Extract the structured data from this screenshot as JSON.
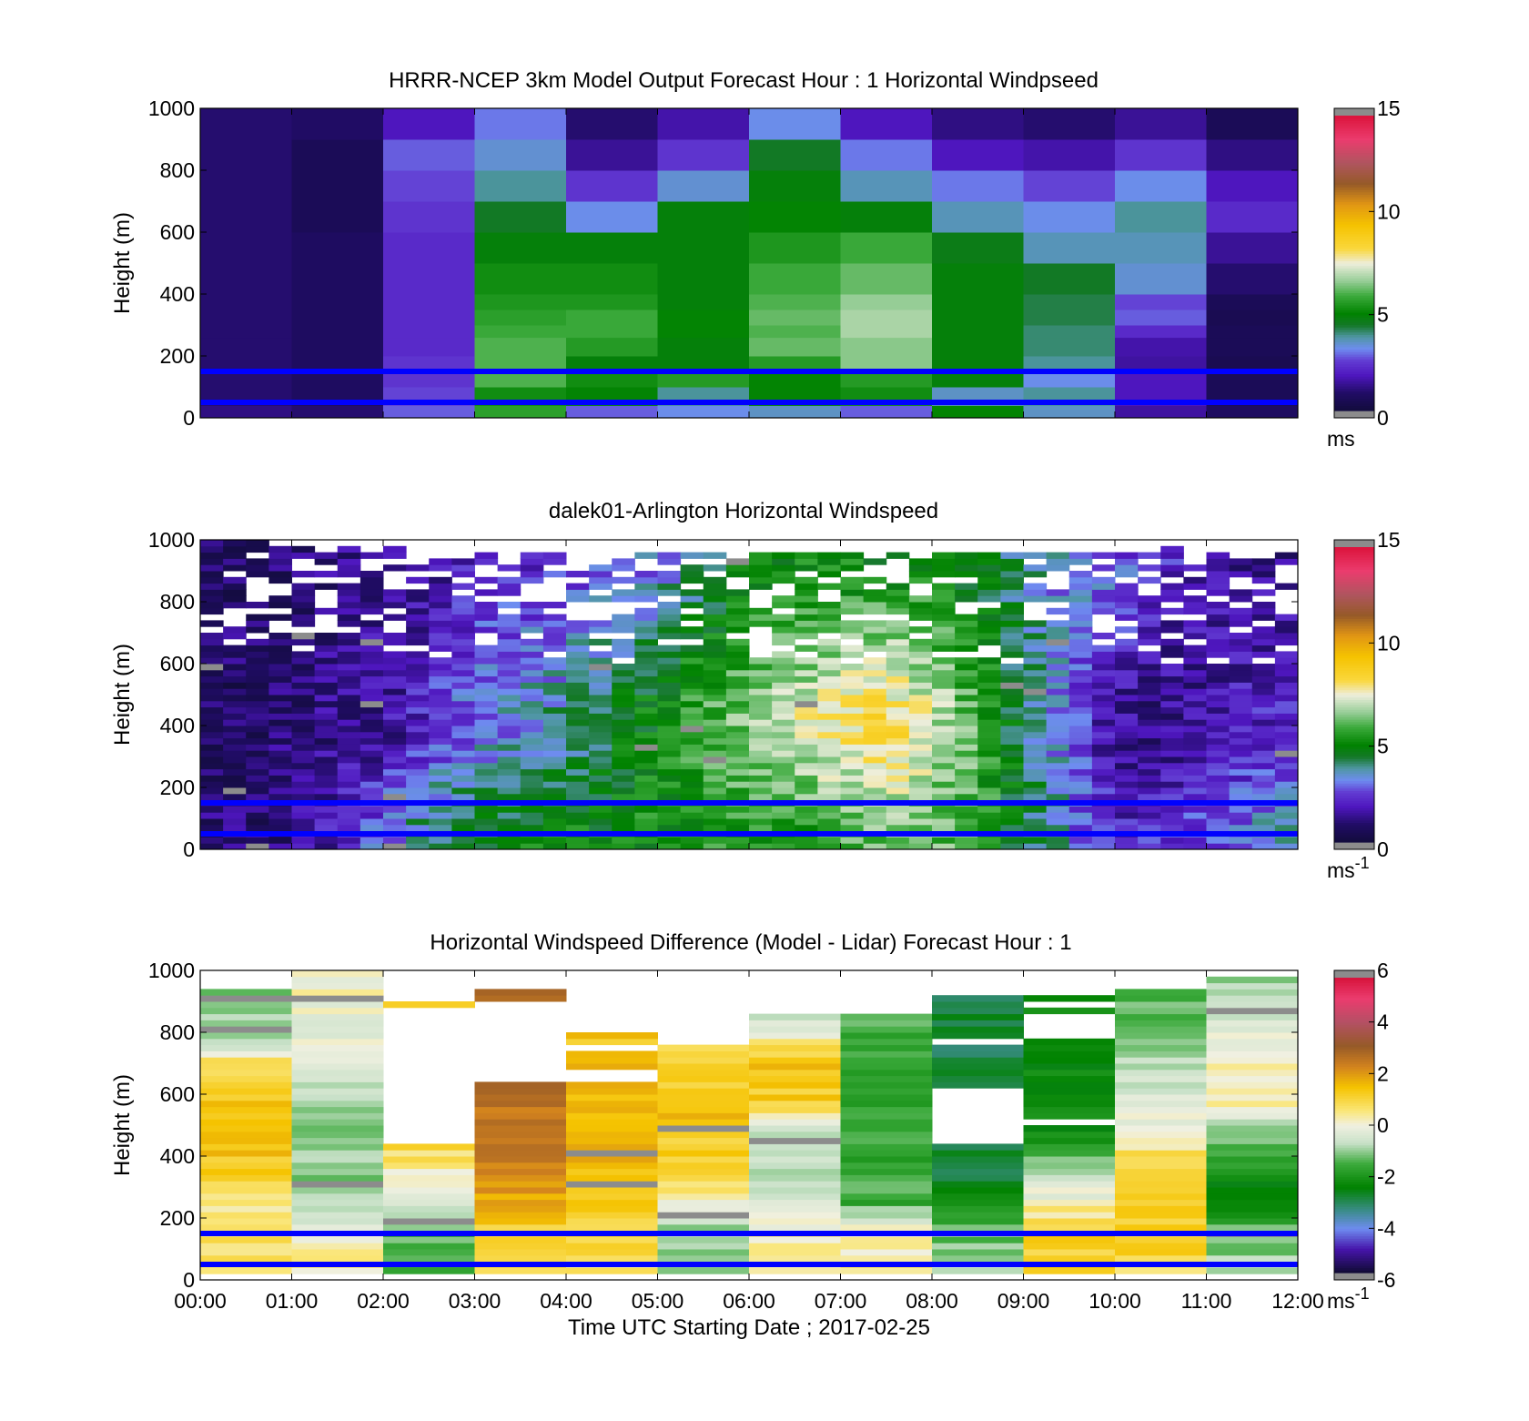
{
  "chart_data": [
    {
      "type": "heatmap",
      "title": "HRRR-NCEP 3km Model Output   Forecast Hour : 1 Horizontal Windpseed",
      "ylabel": "Height (m)",
      "ylim": [
        0,
        1000
      ],
      "yticks": [
        "0",
        "200",
        "400",
        "600",
        "800",
        "1000"
      ],
      "xlim_hours": [
        0,
        12
      ],
      "xticks": [
        "00:00",
        "01:00",
        "02:00",
        "03:00",
        "04:00",
        "05:00",
        "06:00",
        "07:00",
        "08:00",
        "09:00",
        "10:00",
        "11:00",
        "12:00"
      ],
      "show_xtick_labels": false,
      "colorbar": {
        "min": 0,
        "max": 15,
        "ticks": [
          "0",
          "5",
          "10",
          "15"
        ],
        "unit": "ms",
        "unit_sup": "",
        "palette": "wind"
      },
      "reference_heights_m": [
        150,
        50
      ],
      "reference_line_color": "#0000ff",
      "grid": false,
      "x_hours": [
        0,
        1,
        2,
        3,
        4,
        5,
        6,
        7,
        8,
        9,
        10,
        11
      ],
      "height_bins_m": [
        0,
        40,
        100,
        150,
        200,
        260,
        300,
        350,
        400,
        500,
        600,
        700,
        800,
        900,
        1000
      ],
      "values_ms": [
        [
          1.2,
          1.0,
          2.8,
          5.6,
          2.8,
          3.2,
          3.5,
          2.8,
          5.0,
          3.5,
          1.5,
          0.8
        ],
        [
          1.0,
          0.8,
          2.6,
          5.2,
          5.0,
          3.8,
          5.0,
          5.2,
          3.5,
          3.8,
          1.8,
          0.6
        ],
        [
          1.0,
          0.8,
          2.4,
          6.0,
          5.2,
          5.5,
          5.0,
          5.5,
          4.8,
          3.2,
          1.8,
          0.6
        ],
        [
          1.0,
          0.8,
          2.4,
          6.0,
          4.8,
          4.8,
          5.5,
          6.5,
          4.8,
          3.8,
          1.5,
          0.5
        ],
        [
          1.0,
          0.8,
          2.2,
          6.0,
          5.5,
          4.8,
          6.2,
          6.5,
          4.8,
          4.0,
          1.6,
          0.6
        ],
        [
          1.0,
          0.8,
          2.2,
          5.8,
          5.8,
          5.0,
          6.0,
          6.8,
          4.8,
          4.0,
          2.2,
          0.6
        ],
        [
          1.0,
          0.8,
          2.2,
          5.6,
          5.8,
          5.0,
          6.2,
          6.8,
          4.8,
          4.2,
          2.8,
          0.5
        ],
        [
          1.0,
          0.8,
          2.2,
          5.4,
          5.4,
          4.8,
          6.0,
          6.6,
          4.8,
          4.2,
          2.6,
          0.6
        ],
        [
          1.0,
          0.8,
          2.2,
          5.2,
          5.2,
          4.8,
          5.8,
          6.2,
          4.8,
          4.4,
          3.4,
          1.0
        ],
        [
          1.0,
          0.8,
          2.2,
          4.8,
          4.8,
          4.8,
          5.4,
          5.8,
          4.6,
          3.6,
          3.6,
          1.4
        ],
        [
          1.0,
          0.6,
          2.4,
          4.4,
          3.2,
          4.8,
          5.0,
          4.8,
          3.6,
          3.2,
          3.8,
          2.2
        ],
        [
          1.0,
          0.6,
          2.6,
          3.8,
          2.4,
          3.4,
          4.8,
          3.6,
          3.0,
          2.6,
          3.2,
          1.8
        ],
        [
          1.0,
          0.6,
          2.8,
          3.4,
          1.4,
          2.4,
          4.4,
          3.0,
          1.8,
          1.6,
          2.4,
          1.2
        ],
        [
          1.0,
          0.9,
          1.8,
          3.0,
          1.0,
          1.6,
          3.2,
          1.8,
          1.2,
          1.0,
          1.4,
          0.6
        ]
      ]
    },
    {
      "type": "heatmap",
      "title": "dalek01-Arlington  Horizontal Windspeed",
      "ylabel": "Height (m)",
      "ylim": [
        0,
        1000
      ],
      "yticks": [
        "0",
        "200",
        "400",
        "600",
        "800",
        "1000"
      ],
      "xlim_hours": [
        0,
        12
      ],
      "xticks": [
        "00:00",
        "01:00",
        "02:00",
        "03:00",
        "04:00",
        "05:00",
        "06:00",
        "07:00",
        "08:00",
        "09:00",
        "10:00",
        "11:00",
        "12:00"
      ],
      "show_xtick_labels": false,
      "colorbar": {
        "min": 0,
        "max": 15,
        "ticks": [
          "0",
          "5",
          "10",
          "15"
        ],
        "unit": "ms",
        "unit_sup": "-1",
        "palette": "wind"
      },
      "reference_heights_m": [
        150,
        50
      ],
      "reference_line_color": "#0000ff",
      "grid": false,
      "x_step_hours": 0.25,
      "x_count": 48,
      "height_step_m": 20,
      "height_count": 50,
      "profile_control_hours": [
        0,
        0.5,
        1,
        1.5,
        2,
        2.5,
        3,
        3.5,
        4,
        4.5,
        5,
        5.5,
        6,
        6.5,
        7,
        7.5,
        8,
        8.5,
        9,
        9.5,
        10,
        10.5,
        11,
        11.5,
        12
      ],
      "profile_low_ms": [
        1.0,
        1.0,
        1.2,
        2.0,
        3.0,
        4.2,
        4.6,
        4.8,
        5.0,
        5.0,
        5.2,
        5.4,
        5.4,
        5.6,
        5.8,
        6.2,
        6.2,
        5.8,
        4.5,
        3.2,
        2.0,
        2.2,
        2.6,
        3.2,
        3.4
      ],
      "profile_mid_ms": [
        0.8,
        0.8,
        1.0,
        1.3,
        1.5,
        2.2,
        3.0,
        3.4,
        3.8,
        4.5,
        5.0,
        5.8,
        6.4,
        7.2,
        7.8,
        8.4,
        7.2,
        5.8,
        4.2,
        2.8,
        1.5,
        1.2,
        1.6,
        2.0,
        2.0
      ],
      "profile_high_ms": [
        1.0,
        0.9,
        1.0,
        1.2,
        1.4,
        1.6,
        2.0,
        2.2,
        2.4,
        2.8,
        3.2,
        4.0,
        4.8,
        5.0,
        5.0,
        5.0,
        5.0,
        4.6,
        3.8,
        3.2,
        2.8,
        2.2,
        1.6,
        1.4,
        1.4
      ],
      "top_of_data_m_per_column": [
        1000,
        1000,
        990,
        990,
        1000,
        985,
        970,
        960,
        970,
        960,
        950,
        950,
        960,
        960,
        950,
        950,
        960,
        960,
        960,
        955,
        955,
        960,
        955,
        955,
        960,
        955,
        950,
        950,
        950,
        950,
        950,
        950,
        955,
        955,
        950,
        955,
        950,
        960,
        955,
        960,
        950,
        965,
        970,
        965,
        960,
        960,
        955,
        960
      ],
      "missing_fraction_above_600m": 0.32,
      "random_seed": 7
    },
    {
      "type": "heatmap",
      "title": "Horizontal Windspeed Difference (Model - Lidar) Forecast Hour : 1",
      "xlabel": "Time UTC  Starting Date ; 2017-02-25",
      "ylabel": "Height (m)",
      "ylim": [
        0,
        1000
      ],
      "yticks": [
        "0",
        "200",
        "400",
        "600",
        "800",
        "1000"
      ],
      "xlim_hours": [
        0,
        12
      ],
      "xticks": [
        "00:00",
        "01:00",
        "02:00",
        "03:00",
        "04:00",
        "05:00",
        "06:00",
        "07:00",
        "08:00",
        "09:00",
        "10:00",
        "11:00",
        "12:00"
      ],
      "show_xtick_labels": true,
      "colorbar": {
        "min": -6,
        "max": 6,
        "ticks": [
          "-6",
          "-4",
          "-2",
          "0",
          "2",
          "4",
          "6"
        ],
        "unit": "ms",
        "unit_sup": "-1",
        "palette": "diff"
      },
      "reference_heights_m": [
        150,
        50
      ],
      "reference_line_color": "#0000ff",
      "grid": false,
      "x_hours": [
        0,
        1,
        2,
        3,
        4,
        5,
        6,
        7,
        8,
        9,
        10,
        11
      ],
      "height_step_m": 20,
      "column_top_m": [
        940,
        1000,
        890,
        925,
        790,
        750,
        860,
        860,
        920,
        910,
        940,
        980
      ],
      "column_profiles": [
        {
          "h": [
            20,
            150,
            250,
            400,
            600,
            700,
            760,
            900,
            940
          ],
          "v": [
            0.8,
            0.8,
            0.5,
            1.5,
            1.5,
            1.0,
            -0.6,
            -1.2,
            -1.6
          ]
        },
        {
          "h": [
            20,
            150,
            200,
            300,
            500,
            700,
            1000
          ],
          "v": [
            0.3,
            0.2,
            -0.8,
            -1.0,
            -1.2,
            -0.4,
            0.2
          ]
        },
        {
          "h": [
            20,
            150,
            400,
            450
          ],
          "v": [
            -1.5,
            -1.5,
            0.8,
            0.9
          ]
        },
        {
          "h": [
            20,
            150,
            300,
            450,
            580
          ],
          "v": [
            1.0,
            1.2,
            2.0,
            2.6,
            2.7
          ]
        },
        {
          "h": [
            20,
            150,
            300,
            450,
            650
          ],
          "v": [
            0.8,
            1.0,
            1.6,
            1.8,
            1.5
          ]
        },
        {
          "h": [
            20,
            150,
            300,
            500,
            740
          ],
          "v": [
            -1.2,
            -1.0,
            0.6,
            1.6,
            1.2
          ]
        },
        {
          "h": [
            20,
            150,
            300,
            480,
            560,
            700,
            860
          ],
          "v": [
            0.2,
            0.2,
            -0.8,
            -0.8,
            1.2,
            1.5,
            -1.0
          ]
        },
        {
          "h": [
            20,
            150,
            250,
            500,
            860
          ],
          "v": [
            0.5,
            0.3,
            -1.6,
            -1.8,
            -1.6
          ]
        },
        {
          "h": [
            20,
            150,
            300,
            450
          ],
          "v": [
            -1.0,
            -1.2,
            -2.8,
            -3.0
          ]
        },
        {
          "h": [
            20,
            150,
            300,
            480
          ],
          "v": [
            1.2,
            1.2,
            -0.3,
            -2.4
          ]
        },
        {
          "h": [
            20,
            100,
            250,
            400,
            600,
            800,
            940
          ],
          "v": [
            0.8,
            1.2,
            1.4,
            0.8,
            -0.6,
            -1.2,
            -1.6
          ]
        },
        {
          "h": [
            20,
            150,
            250,
            400,
            600,
            800,
            980
          ],
          "v": [
            -0.8,
            -1.2,
            -2.6,
            -1.8,
            0.5,
            -0.3,
            -1.2
          ]
        }
      ],
      "gaps_m": [
        {
          "col": 8,
          "from": 450,
          "to": 620
        },
        {
          "col": 8,
          "from": 760,
          "to": 770
        },
        {
          "col": 9,
          "from": 500,
          "to": 520
        },
        {
          "col": 9,
          "from": 780,
          "to": 860
        },
        {
          "col": 9,
          "from": 880,
          "to": 890
        },
        {
          "col": 2,
          "from": 450,
          "to": 870
        },
        {
          "col": 3,
          "from": 650,
          "to": 900
        },
        {
          "col": 4,
          "from": 650,
          "to": 670
        },
        {
          "col": 4,
          "from": 740,
          "to": 760
        }
      ],
      "random_seed": 11
    }
  ]
}
